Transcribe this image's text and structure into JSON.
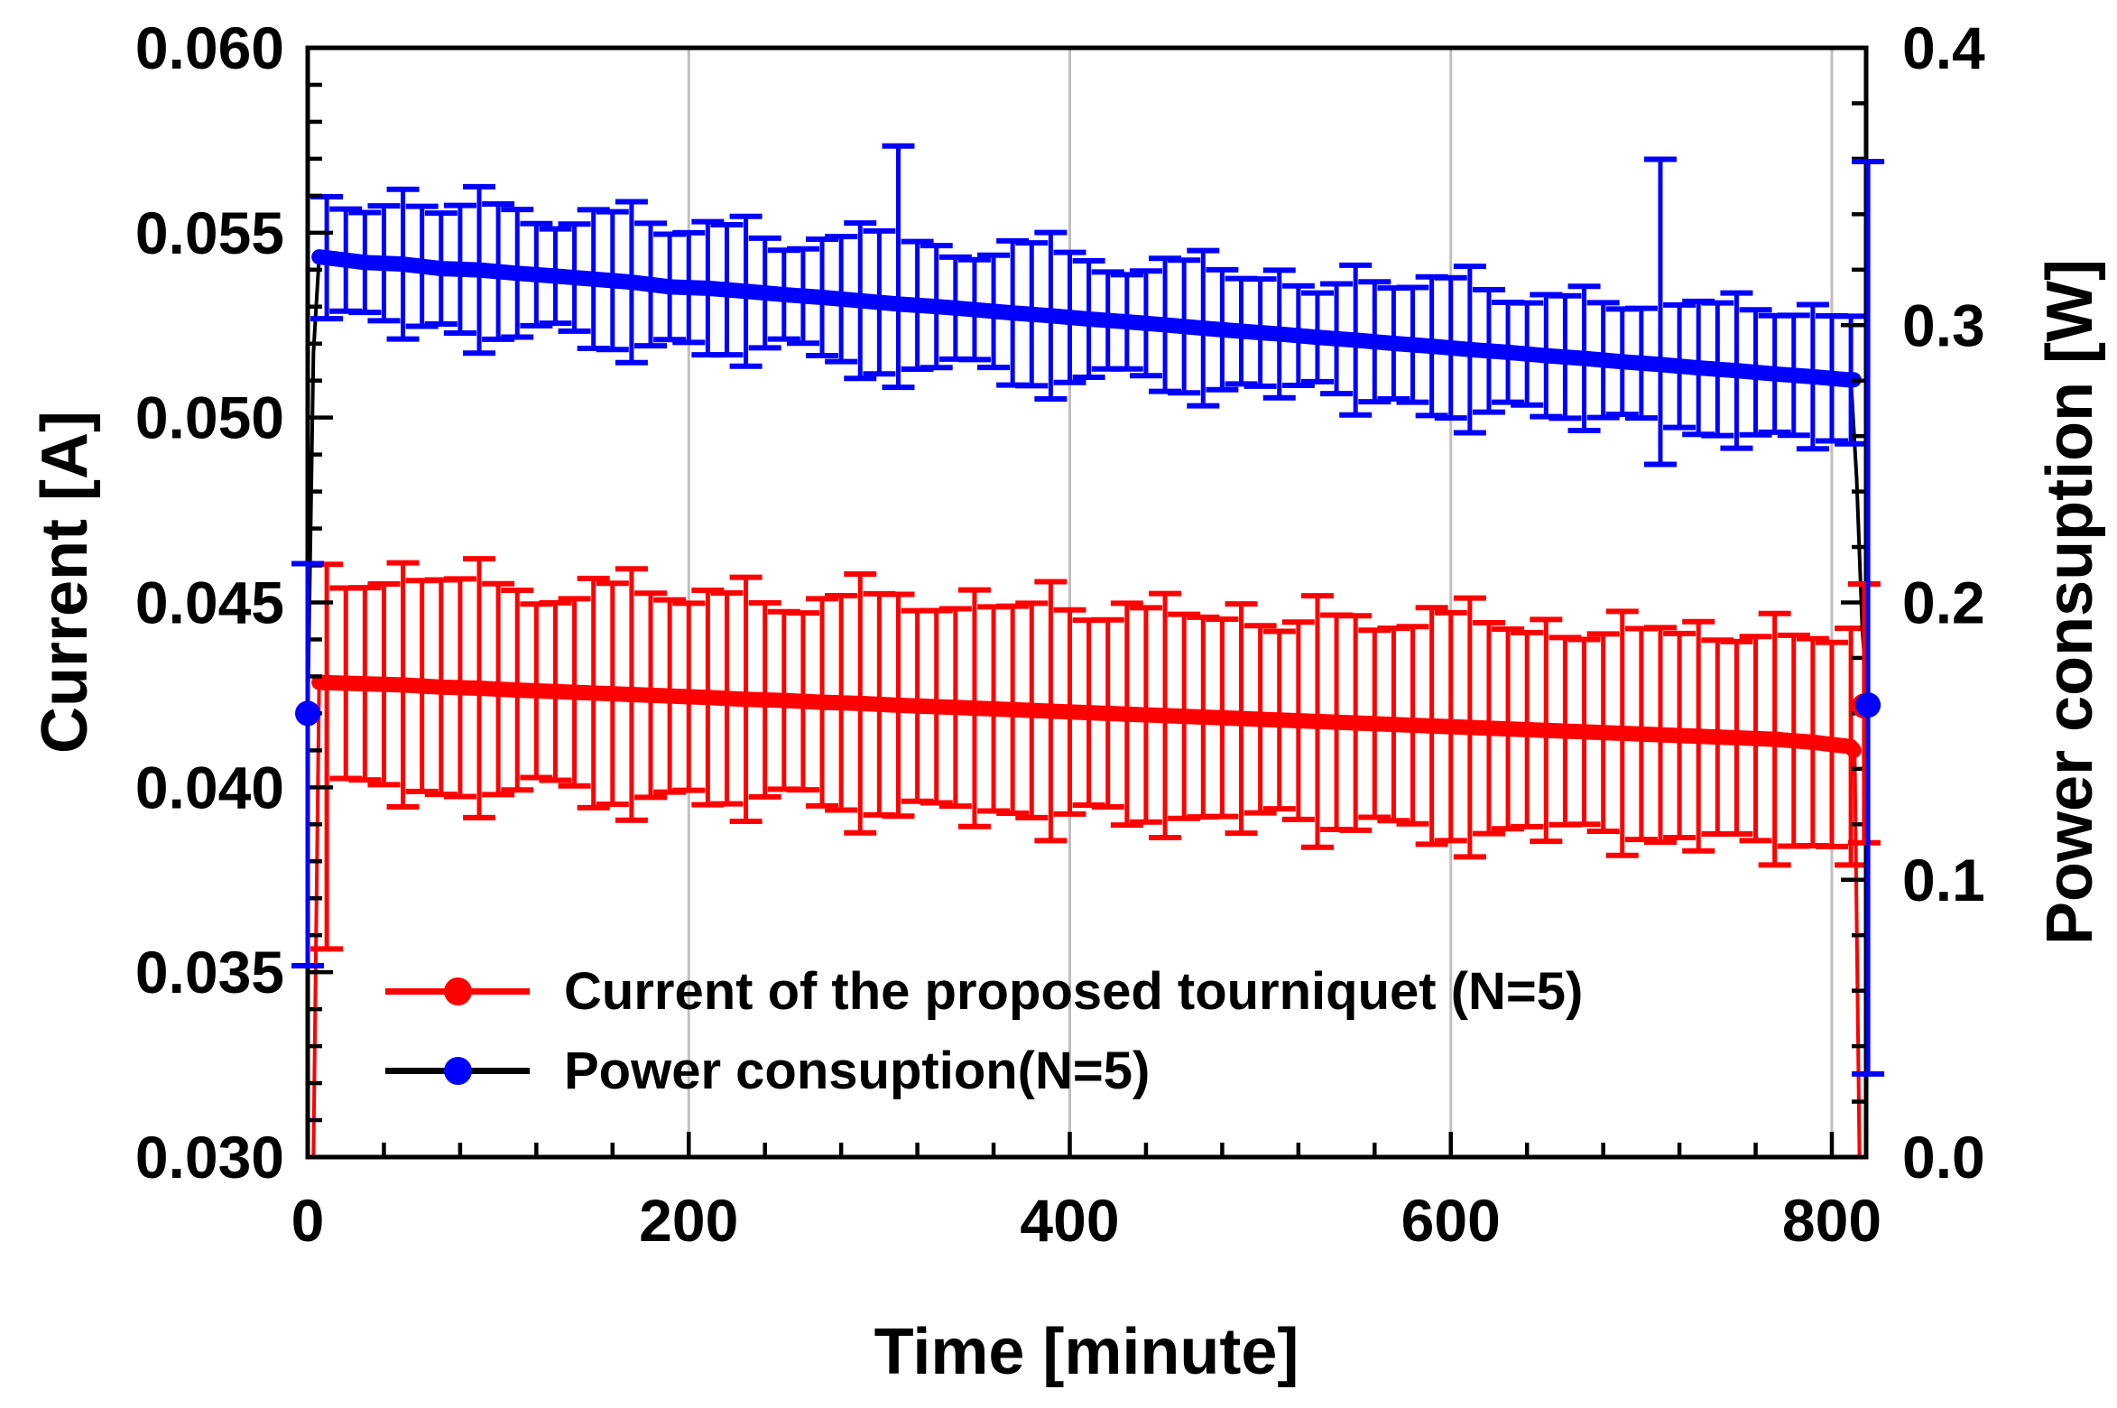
{
  "chart_data": {
    "type": "line",
    "title": "",
    "xlabel": "Time [minute]",
    "ylabel_left": "Current [A]",
    "ylabel_right": "Power consuption [W]",
    "x_range": [
      0,
      818
    ],
    "y_left_range": [
      0.03,
      0.06
    ],
    "y_right_range": [
      0.0,
      0.4
    ],
    "x_major_ticks": [
      0,
      200,
      400,
      600,
      800
    ],
    "x_tick_labels": [
      "0",
      "200",
      "400",
      "600",
      "800"
    ],
    "x_minor_step": 40,
    "y_left_major_ticks": [
      0.03,
      0.035,
      0.04,
      0.045,
      0.05,
      0.055,
      0.06
    ],
    "y_left_tick_labels": [
      "0.030",
      "0.035",
      "0.040",
      "0.045",
      "0.050",
      "0.055",
      "0.060"
    ],
    "y_left_minor_step": 0.001,
    "y_right_major_ticks": [
      0.0,
      0.1,
      0.2,
      0.3,
      0.4
    ],
    "y_right_tick_labels": [
      "0.0",
      "0.1",
      "0.2",
      "0.3",
      "0.4"
    ],
    "y_right_minor_step": 0.02,
    "gridlines_x": [
      200,
      400,
      600,
      800
    ],
    "grid_color": "#bfbfbf",
    "legend_position": "lower-left-inside",
    "series": [
      {
        "id": "current",
        "name": "Current of the proposed tourniquet (N=5)",
        "axis": "left",
        "line_color": "#ff0000",
        "marker_color": "#ff0000",
        "t": [
          10,
          30,
          50,
          70,
          90,
          110,
          130,
          150,
          170,
          190,
          210,
          230,
          250,
          270,
          290,
          310,
          330,
          350,
          370,
          390,
          410,
          430,
          450,
          470,
          490,
          510,
          530,
          550,
          570,
          590,
          610,
          630,
          650,
          670,
          690,
          710,
          730,
          750,
          770,
          790,
          810
        ],
        "y": [
          0.04283,
          0.0428,
          0.04277,
          0.04271,
          0.04268,
          0.04263,
          0.04259,
          0.04255,
          0.04251,
          0.04247,
          0.04243,
          0.04238,
          0.04235,
          0.0423,
          0.04227,
          0.04222,
          0.04218,
          0.04214,
          0.0421,
          0.04206,
          0.04202,
          0.04198,
          0.04194,
          0.0419,
          0.04186,
          0.04182,
          0.04178,
          0.04174,
          0.0417,
          0.04166,
          0.04162,
          0.04158,
          0.04154,
          0.0415,
          0.04146,
          0.04142,
          0.04138,
          0.04134,
          0.0413,
          0.04122,
          0.0411
        ],
        "err": [
          0.003,
          0.0026,
          0.0033,
          0.0029,
          0.0035,
          0.0027,
          0.0024,
          0.0031,
          0.0034,
          0.0026,
          0.0029,
          0.0033,
          0.0024,
          0.0028,
          0.0035,
          0.003,
          0.0026,
          0.0032,
          0.0028,
          0.0035,
          0.0025,
          0.003,
          0.0033,
          0.0027,
          0.0031,
          0.0024,
          0.0034,
          0.0029,
          0.0026,
          0.0032,
          0.0035,
          0.0027,
          0.003,
          0.0025,
          0.0033,
          0.0029,
          0.0031,
          0.0026,
          0.0034,
          0.0028,
          0.0032
        ],
        "err_spikes": [
          {
            "i": 0,
            "up": 0.0032,
            "dn": 0.0072
          }
        ],
        "line_pre": [
          [
            3,
            0.03
          ],
          [
            6,
            0.04284
          ]
        ],
        "line_post": [
          [
            812,
            0.0409
          ],
          [
            814.5,
            0.03
          ]
        ],
        "band_end": [
          811.5,
          0.041
        ],
        "end_point": {
          "t": 817,
          "y": 0.0422,
          "up": 0.0033,
          "dn": 0.0037
        }
      },
      {
        "id": "power",
        "name": "Power consuption(N=5)",
        "axis": "right",
        "line_color": "#000000",
        "marker_color": "#0000ff",
        "t": [
          10,
          30,
          50,
          70,
          90,
          110,
          130,
          150,
          170,
          190,
          210,
          230,
          250,
          270,
          290,
          310,
          330,
          350,
          370,
          390,
          410,
          430,
          450,
          470,
          490,
          510,
          530,
          550,
          570,
          590,
          610,
          630,
          650,
          670,
          690,
          710,
          730,
          750,
          770,
          790,
          810
        ],
        "y": [
          0.3243,
          0.3226,
          0.322,
          0.3204,
          0.3199,
          0.3187,
          0.3177,
          0.3166,
          0.3155,
          0.3138,
          0.3133,
          0.3122,
          0.311,
          0.31,
          0.3088,
          0.3076,
          0.3067,
          0.3056,
          0.3044,
          0.3034,
          0.3022,
          0.3012,
          0.3001,
          0.2989,
          0.2978,
          0.2968,
          0.2956,
          0.2946,
          0.2934,
          0.2924,
          0.2912,
          0.2902,
          0.289,
          0.288,
          0.2868,
          0.2858,
          0.2846,
          0.2836,
          0.2824,
          0.2814,
          0.2802
        ],
        "err": [
          0.022,
          0.018,
          0.027,
          0.02,
          0.03,
          0.023,
          0.017,
          0.025,
          0.029,
          0.019,
          0.024,
          0.027,
          0.016,
          0.021,
          0.028,
          0.028,
          0.022,
          0.018,
          0.026,
          0.03,
          0.021,
          0.017,
          0.024,
          0.028,
          0.019,
          0.023,
          0.016,
          0.027,
          0.02,
          0.025,
          0.03,
          0.018,
          0.022,
          0.026,
          0.019,
          0.024,
          0.024,
          0.028,
          0.021,
          0.026,
          0.023
        ],
        "err_spikes": [
          {
            "i": 15,
            "up": 0.057,
            "dn": 0.03
          },
          {
            "i": 35,
            "up": 0.074,
            "dn": 0.036
          }
        ],
        "line_pre": [
          [
            0,
            0.16
          ],
          [
            3,
            0.29
          ],
          [
            6,
            0.3246
          ]
        ],
        "line_post": [
          [
            813,
            0.245
          ],
          [
            816,
            0.19
          ],
          [
            819,
            0.163
          ]
        ],
        "band_end": [
          811.5,
          0.2803
        ],
        "start_point": {
          "t": 0,
          "y": 0.16,
          "up": 0.054,
          "dn": 0.091
        },
        "end_point": {
          "t": 819,
          "y": 0.163,
          "up": 0.196,
          "dn": 0.133
        }
      }
    ]
  }
}
